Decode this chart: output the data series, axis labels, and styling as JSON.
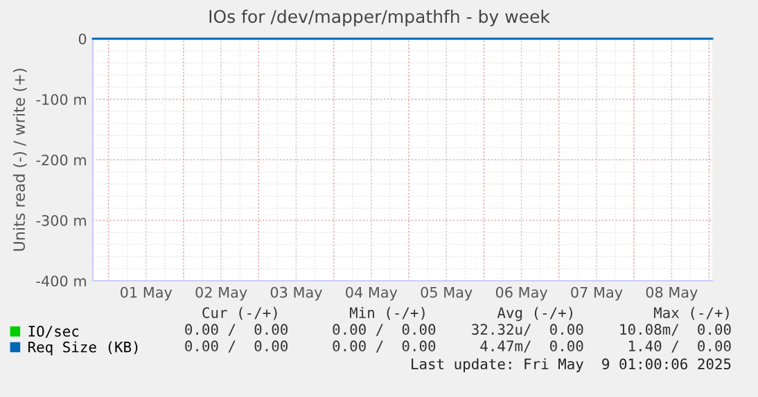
{
  "chart_data": {
    "type": "line",
    "title": "IOs for /dev/mapper/mpathfh - by week",
    "ylabel": "Units read (-) / write (+)",
    "x": [
      "2025-04-30T19:00",
      "2025-05-09T01:00"
    ],
    "xlim": [
      "2025-04-30T19:00",
      "2025-05-09T01:00"
    ],
    "xticks": [
      {
        "value": "2025-05-01T00:00",
        "label": null
      },
      {
        "value": "2025-05-01T12:00",
        "label": "01 May"
      },
      {
        "value": "2025-05-02T00:00",
        "label": null
      },
      {
        "value": "2025-05-02T12:00",
        "label": "02 May"
      },
      {
        "value": "2025-05-03T00:00",
        "label": null
      },
      {
        "value": "2025-05-03T12:00",
        "label": "03 May"
      },
      {
        "value": "2025-05-04T00:00",
        "label": null
      },
      {
        "value": "2025-05-04T12:00",
        "label": "04 May"
      },
      {
        "value": "2025-05-05T00:00",
        "label": null
      },
      {
        "value": "2025-05-05T12:00",
        "label": "05 May"
      },
      {
        "value": "2025-05-06T00:00",
        "label": null
      },
      {
        "value": "2025-05-06T12:00",
        "label": "06 May"
      },
      {
        "value": "2025-05-07T00:00",
        "label": null
      },
      {
        "value": "2025-05-07T12:00",
        "label": "07 May"
      },
      {
        "value": "2025-05-08T00:00",
        "label": null
      },
      {
        "value": "2025-05-08T12:00",
        "label": "08 May"
      },
      {
        "value": "2025-05-09T00:00",
        "label": null
      }
    ],
    "ylim": [
      -400,
      0
    ],
    "yticks": [
      0,
      {
        "value": -100,
        "label": "-100 m"
      },
      {
        "value": -200,
        "label": "-200 m"
      },
      {
        "value": -300,
        "label": "-300 m"
      },
      {
        "value": -400,
        "label": "-400 m"
      }
    ],
    "series": [
      {
        "name": "IO/sec",
        "color": "#00cc00",
        "values": [
          null,
          null
        ]
      },
      {
        "name": "Req Size (KB)",
        "color": "#0066b3",
        "values": [
          0,
          0
        ]
      }
    ],
    "grid": true,
    "legend": "bottom",
    "annotations": [
      "Cur (-/+)        Min (-/+)        Avg (-/+)         Max (-/+)",
      "0.00 /  0.00     0.00 /  0.00    32.32u/  0.00    10.08m/  0.00",
      "0.00 /  0.00     0.00 /  0.00     4.47m/  0.00     1.40 /  0.00",
      "Last update: Fri May  9 01:00:06 2025"
    ]
  }
}
